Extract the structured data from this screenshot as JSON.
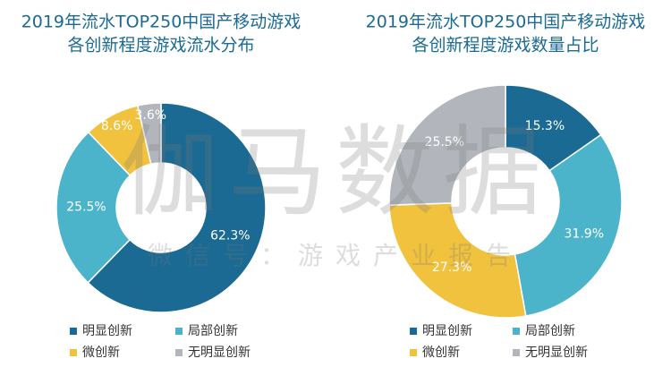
{
  "chart_data": [
    {
      "type": "donut",
      "title": "2019年流水TOP250中国产移动游戏",
      "subtitle": "各创新程度游戏流水分布",
      "categories": [
        "明显创新",
        "局部创新",
        "微创新",
        "无明显创新"
      ],
      "values": [
        62.3,
        25.5,
        8.6,
        3.6
      ],
      "value_labels": [
        "62.3%",
        "25.5%",
        "8.6%",
        "3.6%"
      ],
      "colors": [
        "#1b6a93",
        "#4bb4cb",
        "#f0c23e",
        "#b2b6bc"
      ]
    },
    {
      "type": "donut",
      "title": "2019年流水TOP250中国产移动游戏",
      "subtitle": "各创新程度游戏数量占比",
      "categories": [
        "明显创新",
        "局部创新",
        "微创新",
        "无明显创新"
      ],
      "values": [
        15.3,
        31.9,
        27.3,
        25.5
      ],
      "value_labels": [
        "15.3%",
        "31.9%",
        "27.3%",
        "25.5%"
      ],
      "colors": [
        "#1b6a93",
        "#4bb4cb",
        "#f0c23e",
        "#b2b6bc"
      ]
    }
  ],
  "watermark": {
    "title": "伽马数据",
    "subtitle": "微信号：游戏产业报告"
  }
}
